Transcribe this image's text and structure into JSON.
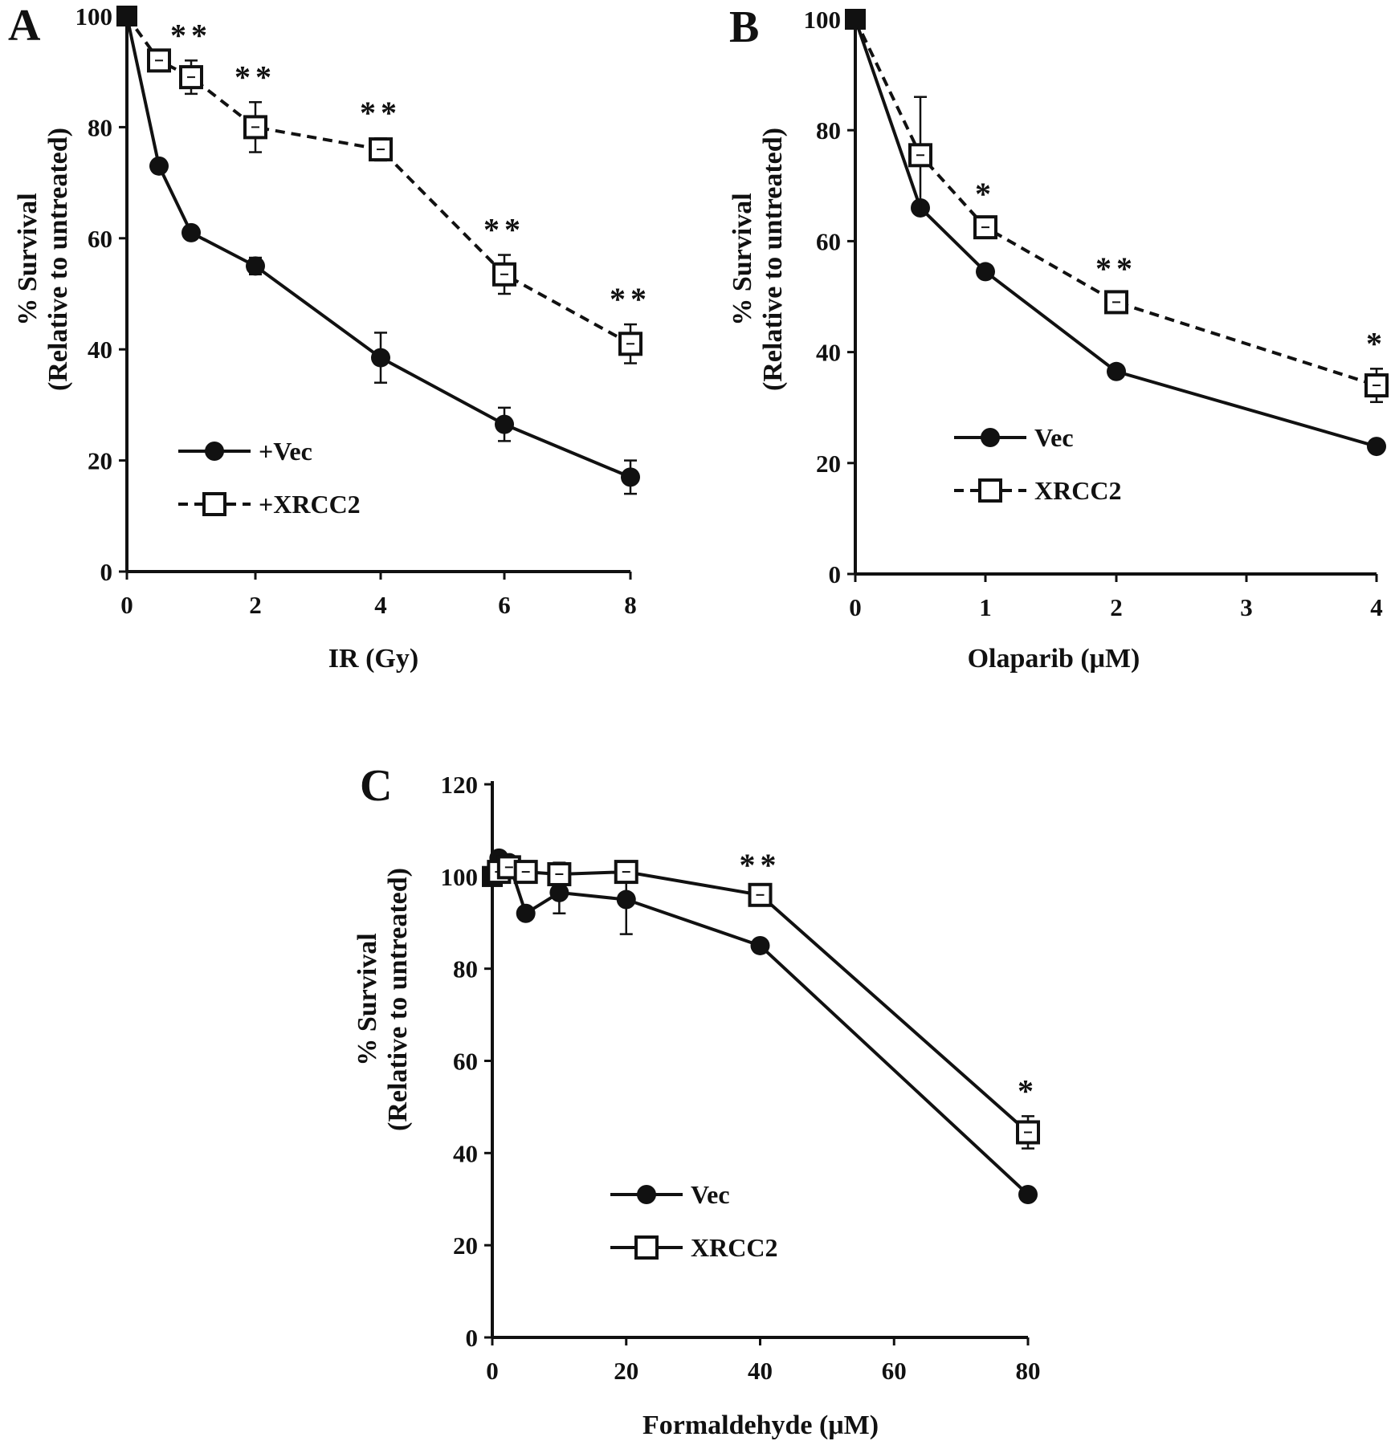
{
  "chart_data": [
    {
      "panel": "A",
      "type": "line",
      "xlabel": "IR (Gy)",
      "ylabel_line1": "% Survival",
      "ylabel_line2": "(Relative to untreated)",
      "xlim": [
        0,
        8
      ],
      "ylim": [
        0,
        100
      ],
      "xticks": [
        0,
        2,
        4,
        6,
        8
      ],
      "yticks": [
        0,
        20,
        40,
        60,
        80,
        100
      ],
      "series": [
        {
          "name": "+Vec",
          "marker": "circle",
          "dash": false,
          "x": [
            0,
            0.5,
            1,
            2,
            4,
            6,
            8
          ],
          "y": [
            100,
            73,
            61,
            55,
            38.5,
            26.5,
            17
          ],
          "err": [
            0,
            1,
            1,
            1.5,
            4.5,
            3,
            3
          ]
        },
        {
          "name": "+XRCC2",
          "marker": "square",
          "dash": true,
          "x": [
            0,
            0.5,
            1,
            2,
            4,
            6,
            8
          ],
          "y": [
            100,
            92,
            89,
            80,
            76,
            53.5,
            41
          ],
          "err": [
            0,
            1,
            3,
            4.5,
            2,
            3.5,
            3.5
          ]
        }
      ],
      "significance": [
        {
          "x": 1,
          "label": "**"
        },
        {
          "x": 2,
          "label": "**"
        },
        {
          "x": 4,
          "label": "**"
        },
        {
          "x": 6,
          "label": "**"
        },
        {
          "x": 8,
          "label": "**"
        }
      ],
      "legend_position": "lower-left"
    },
    {
      "panel": "B",
      "type": "line",
      "xlabel": "Olaparib (μM)",
      "ylabel_line1": "% Survival",
      "ylabel_line2": "(Relative to untreated)",
      "xlim": [
        0,
        4
      ],
      "ylim": [
        0,
        100
      ],
      "xticks": [
        0,
        1,
        2,
        3,
        4
      ],
      "yticks": [
        0,
        20,
        40,
        60,
        80,
        100
      ],
      "series": [
        {
          "name": "Vec",
          "marker": "circle",
          "dash": false,
          "x": [
            0,
            0.5,
            1,
            2,
            4
          ],
          "y": [
            100,
            66,
            54.5,
            36.5,
            23
          ],
          "err": [
            0,
            1,
            1,
            1,
            1
          ]
        },
        {
          "name": "XRCC2",
          "marker": "square",
          "dash": true,
          "x": [
            0,
            0.5,
            1,
            2,
            4
          ],
          "y": [
            100,
            75.5,
            62.5,
            49,
            34
          ],
          "err": [
            0,
            10.5,
            1.5,
            1.5,
            3
          ]
        }
      ],
      "significance": [
        {
          "x": 1,
          "label": "*"
        },
        {
          "x": 2,
          "label": "**"
        },
        {
          "x": 4,
          "label": "*"
        }
      ],
      "legend_position": "lower-left"
    },
    {
      "panel": "C",
      "type": "line",
      "xlabel": "Formaldehyde (μM)",
      "ylabel_line1": "% Survival",
      "ylabel_line2": "(Relative to untreated)",
      "xlim": [
        0,
        80
      ],
      "ylim": [
        0,
        120
      ],
      "xticks": [
        0,
        20,
        40,
        60,
        80
      ],
      "yticks": [
        0,
        20,
        40,
        60,
        80,
        100,
        120
      ],
      "series": [
        {
          "name": "Vec",
          "marker": "circle",
          "dash": false,
          "x": [
            0,
            1,
            2.5,
            5,
            10,
            20,
            40,
            80
          ],
          "y": [
            100,
            104,
            103,
            92,
            96.5,
            95,
            85,
            31
          ],
          "err": [
            0,
            1,
            1,
            1,
            4.5,
            7.5,
            1,
            1
          ]
        },
        {
          "name": "XRCC2",
          "marker": "square",
          "dash": false,
          "x": [
            0,
            1,
            2.5,
            5,
            10,
            20,
            40,
            80
          ],
          "y": [
            100,
            101,
            102,
            101,
            100.5,
            101,
            96,
            44.5
          ],
          "err": [
            0,
            1,
            1,
            1,
            2.5,
            1,
            1,
            3.5
          ]
        }
      ],
      "significance": [
        {
          "x": 40,
          "label": "**"
        },
        {
          "x": 80,
          "label": "*"
        }
      ],
      "legend_position": "lower-left"
    }
  ]
}
